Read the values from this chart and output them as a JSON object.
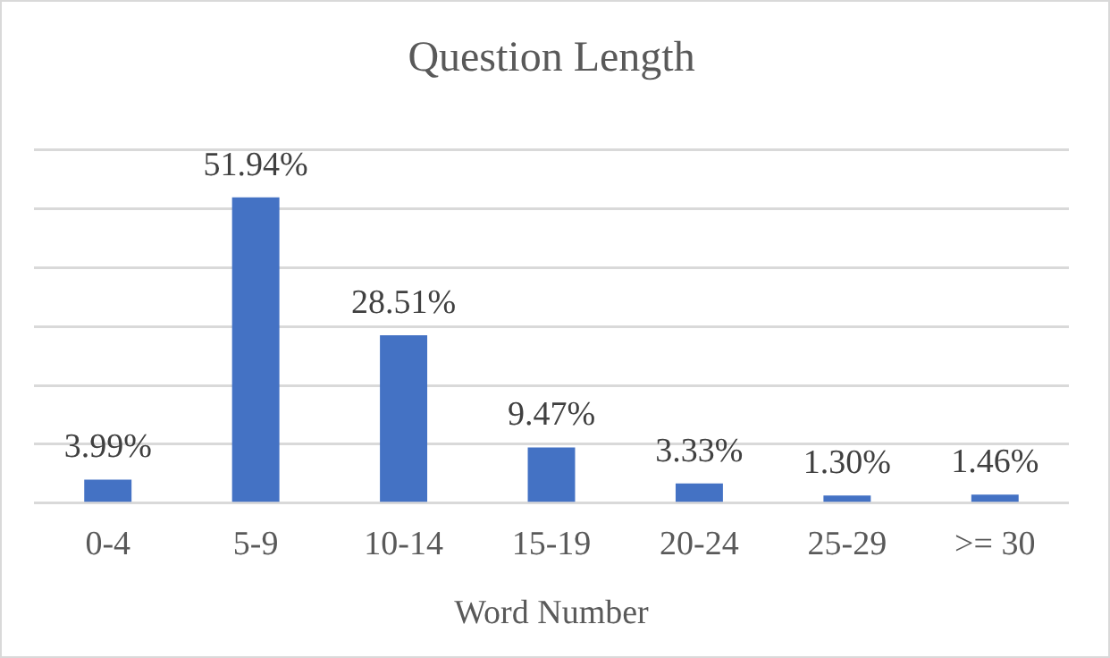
{
  "chart_data": {
    "type": "bar",
    "title": "Question Length",
    "xlabel": "Word Number",
    "categories": [
      "0-4",
      "5-9",
      "10-14",
      "15-19",
      "20-24",
      "25-29",
      ">= 30"
    ],
    "values": [
      3.99,
      51.94,
      28.51,
      9.47,
      3.33,
      1.3,
      1.46
    ],
    "value_labels": [
      "3.99%",
      "51.94%",
      "28.51%",
      "9.47%",
      "3.33%",
      "1.30%",
      "1.46%"
    ],
    "color": "#4472c4",
    "ylim": [
      0,
      60
    ],
    "yticks": [
      {
        "value": 0,
        "label": null
      },
      {
        "value": 10,
        "label": null
      },
      {
        "value": 20,
        "label": null
      },
      {
        "value": 30,
        "label": null
      },
      {
        "value": 40,
        "label": null
      },
      {
        "value": 50,
        "label": null
      },
      {
        "value": 60,
        "label": null
      }
    ],
    "tick_labels": "x",
    "grid": "y",
    "legend": false
  }
}
